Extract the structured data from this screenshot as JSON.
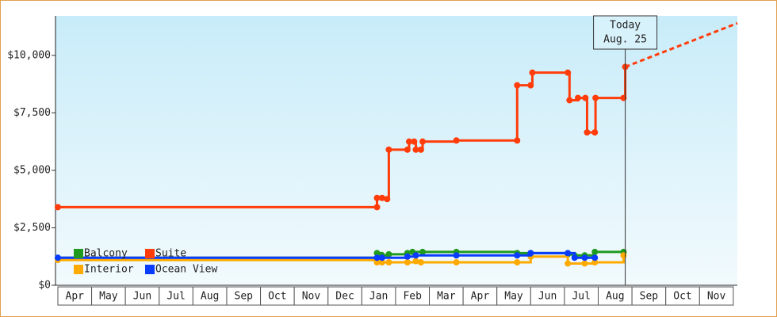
{
  "chart_data": {
    "type": "step-line",
    "xlim": [
      -0.07,
      20.12
    ],
    "xticks": [
      {
        "value": 0,
        "label": "Apr"
      },
      {
        "value": 1,
        "label": "May"
      },
      {
        "value": 2,
        "label": "Jun"
      },
      {
        "value": 3,
        "label": "Jul"
      },
      {
        "value": 4,
        "label": "Aug"
      },
      {
        "value": 5,
        "label": "Sep"
      },
      {
        "value": 6,
        "label": "Oct"
      },
      {
        "value": 7,
        "label": "Nov"
      },
      {
        "value": 8,
        "label": "Dec"
      },
      {
        "value": 9,
        "label": "Jan"
      },
      {
        "value": 10,
        "label": "Feb"
      },
      {
        "value": 11,
        "label": "Mar"
      },
      {
        "value": 12,
        "label": "Apr"
      },
      {
        "value": 13,
        "label": "May"
      },
      {
        "value": 14,
        "label": "Jun"
      },
      {
        "value": 15,
        "label": "Jul"
      },
      {
        "value": 16,
        "label": "Aug"
      },
      {
        "value": 17,
        "label": "Sep"
      },
      {
        "value": 18,
        "label": "Oct"
      },
      {
        "value": 19,
        "label": "Nov"
      }
    ],
    "ylim": [
      0,
      11720
    ],
    "yticks": [
      {
        "value": 0,
        "label": "$0"
      },
      {
        "value": 2500,
        "label": "$2,500"
      },
      {
        "value": 5000,
        "label": "$5,000"
      },
      {
        "value": 7500,
        "label": "$7,500"
      },
      {
        "value": 10000,
        "label": "$10,000"
      }
    ],
    "series": [
      {
        "name": "Balcony",
        "color": "#1f9a1f",
        "x": [
          0,
          9.45,
          9.6,
          9.8,
          10.35,
          10.5,
          10.8,
          11.8,
          13.6,
          14.0,
          15.1,
          15.3,
          15.6,
          15.9,
          16.75
        ],
        "values": [
          1200,
          1400,
          1300,
          1350,
          1400,
          1450,
          1450,
          1450,
          1400,
          1400,
          1350,
          1300,
          1300,
          1450,
          1450
        ]
      },
      {
        "name": "Interior",
        "color": "#ffaa00",
        "x": [
          0,
          9.45,
          9.6,
          9.8,
          10.35,
          10.6,
          10.75,
          11.8,
          13.6,
          14.0,
          15.1,
          15.6,
          15.9,
          16.75
        ],
        "values": [
          1100,
          1000,
          1000,
          1000,
          1000,
          1050,
          1000,
          1000,
          1000,
          1250,
          950,
          950,
          1000,
          1300
        ]
      },
      {
        "name": "Ocean View",
        "color": "#0a3cff",
        "x": [
          0,
          9.45,
          9.6,
          10.35,
          10.6,
          11.8,
          13.6,
          14.0,
          15.1,
          15.3,
          15.6,
          15.9
        ],
        "values": [
          1200,
          1200,
          1200,
          1250,
          1300,
          1300,
          1300,
          1400,
          1400,
          1200,
          1200,
          1200
        ]
      },
      {
        "name": "Suite",
        "color": "#ff3c0a",
        "x": [
          0,
          9.45,
          9.45,
          9.6,
          9.75,
          9.8,
          10.35,
          10.4,
          10.55,
          10.6,
          10.75,
          10.8,
          11.8,
          13.6,
          13.6,
          14.0,
          14.05,
          15.1,
          15.15,
          15.4,
          15.62,
          15.67,
          15.9,
          15.92,
          16.75,
          16.8
        ],
        "values": [
          3400,
          3400,
          3800,
          3800,
          3750,
          5900,
          5900,
          6250,
          6250,
          5900,
          5900,
          6250,
          6300,
          6300,
          8700,
          8700,
          9250,
          9250,
          8050,
          8150,
          8150,
          6650,
          6650,
          8150,
          8150,
          9500
        ]
      }
    ],
    "trend": {
      "color": "#ff3c0a",
      "x": [
        16.8,
        20.12
      ],
      "values": [
        9500,
        11400
      ]
    },
    "today": {
      "x": 16.8,
      "label": "Today",
      "date": "Aug. 25"
    }
  }
}
